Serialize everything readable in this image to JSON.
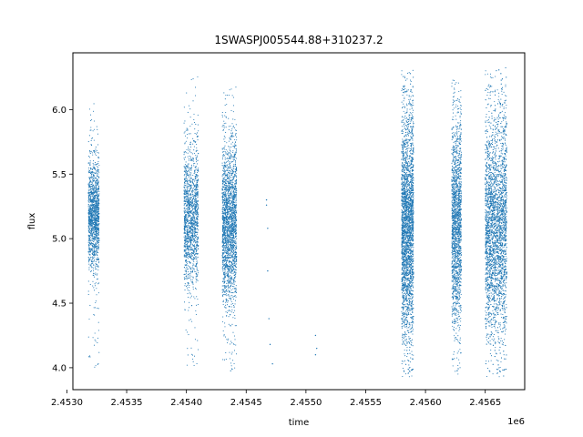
{
  "chart_data": {
    "type": "scatter",
    "title": "1SWASPJ005544.88+310237.2",
    "xlabel": "time",
    "ylabel": "flux",
    "x_offset_label": "1e6",
    "xlim": [
      2.45305,
      2.45683
    ],
    "ylim": [
      3.83,
      6.44
    ],
    "x_ticks": [
      2.453,
      2.4535,
      2.454,
      2.4545,
      2.455,
      2.4555,
      2.456,
      2.4565
    ],
    "x_tick_labels": [
      "2.4530",
      "2.4535",
      "2.4540",
      "2.4545",
      "2.4550",
      "2.4555",
      "2.4560",
      "2.4565"
    ],
    "y_ticks": [
      4.0,
      4.5,
      5.0,
      5.5,
      6.0
    ],
    "y_tick_labels": [
      "4.0",
      "4.5",
      "5.0",
      "5.5",
      "6.0"
    ],
    "grid": false,
    "legend": "none",
    "marker_color": "#1f77b4",
    "series": [
      {
        "clusters": [
          {
            "x_start": 2.45318,
            "x_end": 2.45327,
            "y_center": 5.18,
            "y_spread": 0.2,
            "y_min": 3.98,
            "y_max": 6.05,
            "density": 1400
          },
          {
            "x_start": 2.45398,
            "x_end": 2.4541,
            "y_center": 5.17,
            "y_spread": 0.26,
            "y_min": 3.98,
            "y_max": 6.26,
            "density": 1500
          },
          {
            "x_start": 2.4543,
            "x_end": 2.45442,
            "y_center": 5.12,
            "y_spread": 0.3,
            "y_min": 3.95,
            "y_max": 6.18,
            "density": 2200
          },
          {
            "x_start": 2.4558,
            "x_end": 2.4559,
            "y_center": 5.1,
            "y_spread": 0.42,
            "y_min": 3.93,
            "y_max": 6.31,
            "density": 3200
          },
          {
            "x_start": 2.45622,
            "x_end": 2.4563,
            "y_center": 5.12,
            "y_spread": 0.38,
            "y_min": 3.95,
            "y_max": 6.28,
            "density": 1800
          },
          {
            "x_start": 2.4565,
            "x_end": 2.45668,
            "y_center": 5.1,
            "y_spread": 0.42,
            "y_min": 3.93,
            "y_max": 6.33,
            "density": 3600
          }
        ],
        "sparse_points": [
          [
            2.45467,
            5.3
          ],
          [
            2.45467,
            5.26
          ],
          [
            2.45468,
            5.08
          ],
          [
            2.45468,
            4.75
          ],
          [
            2.45469,
            4.38
          ],
          [
            2.4547,
            4.18
          ],
          [
            2.45472,
            4.03
          ],
          [
            2.45508,
            4.25
          ],
          [
            2.45508,
            4.1
          ],
          [
            2.45509,
            4.15
          ]
        ]
      }
    ]
  }
}
